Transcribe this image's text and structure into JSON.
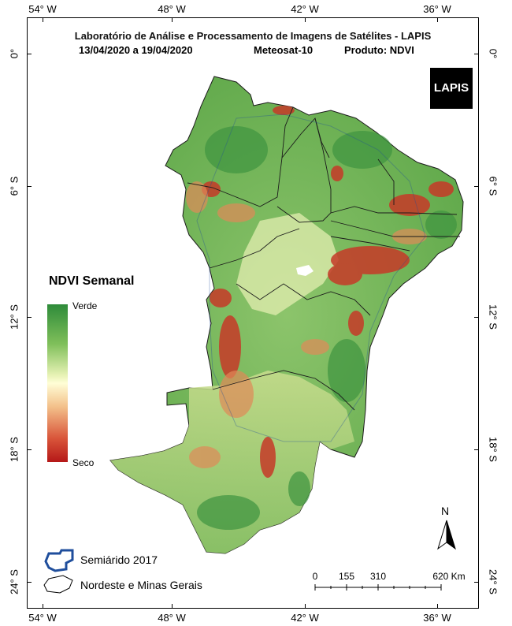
{
  "title": {
    "line1": "Laboratório de Análise e Processamento de Imagens de Satélites - LAPIS",
    "date_range": "13/04/2020  a  19/04/2020",
    "satellite": "Meteosat-10",
    "product": "Produto: NDVI"
  },
  "axes": {
    "top_ticks": [
      "54° W",
      "48° W",
      "42° W",
      "36° W"
    ],
    "bottom_ticks": [
      "54° W",
      "48° W",
      "42° W",
      "36° W"
    ],
    "left_ticks": [
      "0°",
      "6° S",
      "12° S",
      "18° S",
      "24° S"
    ],
    "right_ticks": [
      "0°",
      "6° S",
      "12° S",
      "18° S",
      "24° S"
    ]
  },
  "logo": {
    "text": "LAPIS"
  },
  "legend": {
    "title": "NDVI Semanal",
    "high_label": "Verde",
    "low_label": "Seco",
    "colors": {
      "high": "#2e8b3a",
      "mid": "#fffed6",
      "low": "#b51818"
    },
    "items": [
      {
        "label": "Semiárido 2017",
        "icon": "semiarid-outline-icon",
        "color": "#1f4e9c"
      },
      {
        "label": "Nordeste e Minas Gerais",
        "icon": "region-outline-icon",
        "color": "#000000"
      }
    ]
  },
  "scale_bar": {
    "labels": [
      "0",
      "155",
      "310",
      "620 Km"
    ]
  },
  "north_arrow": {
    "label": "N"
  }
}
